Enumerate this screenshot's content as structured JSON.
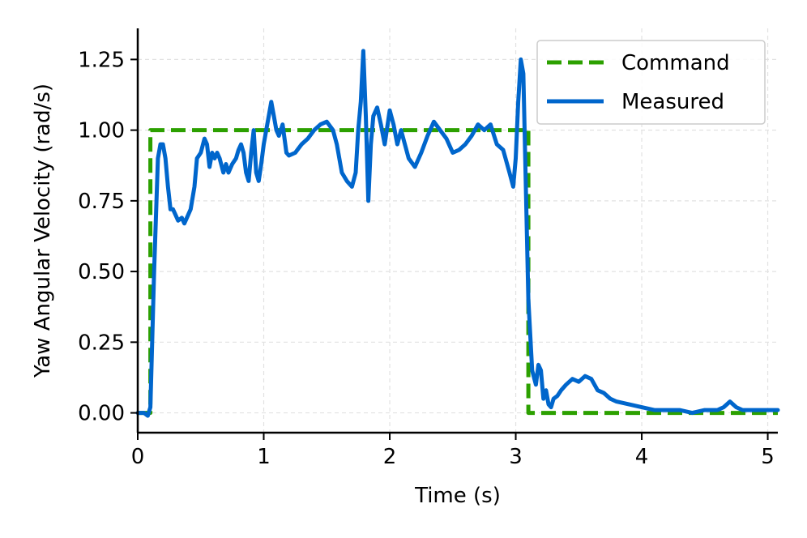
{
  "chart_data": {
    "type": "line",
    "title": "",
    "xlabel": "Time (s)",
    "ylabel": "Yaw Angular Velocity (rad/s)",
    "xlim": [
      0,
      5.08
    ],
    "ylim": [
      -0.07,
      1.36
    ],
    "xticks": [
      0,
      1,
      2,
      3,
      4,
      5
    ],
    "xtick_labels": [
      "0",
      "1",
      "2",
      "3",
      "4",
      "5"
    ],
    "yticks": [
      0.0,
      0.25,
      0.5,
      0.75,
      1.0,
      1.25
    ],
    "ytick_labels": [
      "0.00",
      "0.25",
      "0.50",
      "0.75",
      "1.00",
      "1.25"
    ],
    "grid": true,
    "legend_position": "top-right",
    "series": [
      {
        "name": "Command",
        "style": "dashed",
        "color": "#2ca000",
        "x": [
          0,
          0.08,
          0.08,
          0.1,
          0.1,
          3.08,
          3.08,
          3.1,
          3.1,
          5.08
        ],
        "y": [
          0,
          0,
          0,
          0,
          1.0,
          1.0,
          1.0,
          1.0,
          0,
          0
        ]
      },
      {
        "name": "Measured",
        "style": "solid",
        "color": "#0066cc",
        "x": [
          0.0,
          0.05,
          0.08,
          0.1,
          0.13,
          0.16,
          0.18,
          0.2,
          0.22,
          0.24,
          0.26,
          0.28,
          0.3,
          0.32,
          0.35,
          0.37,
          0.4,
          0.42,
          0.45,
          0.47,
          0.5,
          0.53,
          0.55,
          0.57,
          0.59,
          0.61,
          0.63,
          0.65,
          0.68,
          0.7,
          0.72,
          0.75,
          0.78,
          0.8,
          0.82,
          0.84,
          0.86,
          0.88,
          0.9,
          0.92,
          0.94,
          0.96,
          0.98,
          1.0,
          1.02,
          1.04,
          1.06,
          1.08,
          1.1,
          1.12,
          1.15,
          1.18,
          1.2,
          1.25,
          1.3,
          1.35,
          1.4,
          1.45,
          1.5,
          1.55,
          1.58,
          1.62,
          1.66,
          1.7,
          1.73,
          1.75,
          1.77,
          1.79,
          1.81,
          1.83,
          1.85,
          1.87,
          1.9,
          1.93,
          1.96,
          2.0,
          2.03,
          2.06,
          2.09,
          2.12,
          2.15,
          2.2,
          2.25,
          2.3,
          2.35,
          2.4,
          2.45,
          2.5,
          2.55,
          2.6,
          2.65,
          2.7,
          2.75,
          2.8,
          2.85,
          2.9,
          2.95,
          2.98,
          3.0,
          3.02,
          3.04,
          3.06,
          3.08,
          3.1,
          3.13,
          3.16,
          3.18,
          3.2,
          3.22,
          3.24,
          3.26,
          3.28,
          3.3,
          3.33,
          3.36,
          3.4,
          3.45,
          3.5,
          3.55,
          3.6,
          3.65,
          3.7,
          3.75,
          3.8,
          3.9,
          4.0,
          4.1,
          4.2,
          4.3,
          4.4,
          4.5,
          4.6,
          4.65,
          4.7,
          4.75,
          4.8,
          4.9,
          5.0,
          5.08
        ],
        "y": [
          0.0,
          0.0,
          -0.01,
          0.02,
          0.5,
          0.9,
          0.95,
          0.95,
          0.9,
          0.8,
          0.72,
          0.72,
          0.7,
          0.68,
          0.69,
          0.67,
          0.7,
          0.72,
          0.8,
          0.9,
          0.92,
          0.97,
          0.95,
          0.87,
          0.92,
          0.9,
          0.92,
          0.9,
          0.85,
          0.88,
          0.85,
          0.88,
          0.9,
          0.93,
          0.95,
          0.92,
          0.85,
          0.82,
          0.92,
          1.0,
          0.85,
          0.82,
          0.88,
          0.95,
          1.0,
          1.05,
          1.1,
          1.05,
          1.0,
          0.98,
          1.02,
          0.92,
          0.91,
          0.92,
          0.95,
          0.97,
          1.0,
          1.02,
          1.03,
          1.0,
          0.95,
          0.85,
          0.82,
          0.8,
          0.85,
          1.0,
          1.1,
          1.28,
          1.05,
          0.75,
          0.95,
          1.05,
          1.08,
          1.02,
          0.95,
          1.07,
          1.02,
          0.95,
          1.0,
          0.95,
          0.9,
          0.87,
          0.92,
          0.98,
          1.03,
          1.0,
          0.97,
          0.92,
          0.93,
          0.95,
          0.98,
          1.02,
          1.0,
          1.02,
          0.95,
          0.93,
          0.85,
          0.8,
          0.9,
          1.1,
          1.25,
          1.2,
          0.8,
          0.4,
          0.15,
          0.1,
          0.17,
          0.15,
          0.05,
          0.08,
          0.03,
          0.02,
          0.05,
          0.06,
          0.08,
          0.1,
          0.12,
          0.11,
          0.13,
          0.12,
          0.08,
          0.07,
          0.05,
          0.04,
          0.03,
          0.02,
          0.01,
          0.01,
          0.01,
          0.0,
          0.01,
          0.01,
          0.02,
          0.04,
          0.02,
          0.01,
          0.01,
          0.01,
          0.01
        ]
      }
    ]
  }
}
